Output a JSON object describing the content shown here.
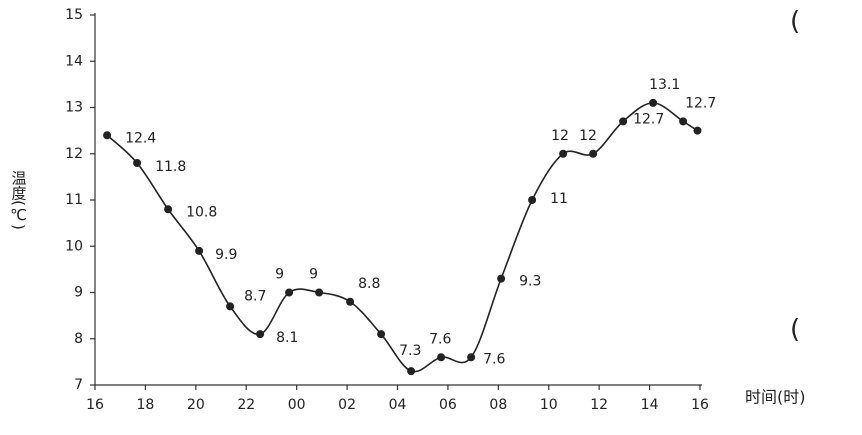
{
  "chart_data": {
    "type": "line",
    "y_label": "温度(℃)",
    "x_label": "时间(时)",
    "annotations": [
      "(",
      "("
    ],
    "x": [
      16.48,
      17.67,
      18.9,
      20.13,
      21.36,
      22.55,
      23.7,
      24.89,
      26.12,
      27.35,
      28.54,
      29.73,
      30.92,
      32.11,
      33.34,
      34.57,
      35.76,
      36.95,
      38.14,
      39.33,
      39.9
    ],
    "values": [
      12.4,
      11.8,
      10.8,
      9.9,
      8.7,
      8.1,
      9,
      9,
      8.8,
      8.1,
      7.3,
      7.6,
      7.6,
      9.3,
      11,
      12,
      12,
      12.7,
      13.1,
      12.7,
      12.5
    ],
    "value_labels": [
      "12.4",
      "11.8",
      "10.8",
      "9.9",
      "8.7",
      "8.1",
      "9",
      "9",
      "8.8",
      null,
      "7.3",
      "7.6",
      "7.6",
      "9.3",
      "11",
      "12",
      "12",
      "12.7",
      "13.1",
      "12.7",
      null
    ],
    "color": "#222222",
    "xlim": [
      16,
      40
    ],
    "xticks": [
      16,
      18,
      20,
      22,
      {
        "value": 24,
        "label": "00"
      },
      {
        "value": 26,
        "label": "02"
      },
      {
        "value": 28,
        "label": "04"
      },
      {
        "value": 30,
        "label": "06"
      },
      {
        "value": 32,
        "label": "08"
      },
      {
        "value": 34,
        "label": "10"
      },
      {
        "value": 36,
        "label": "12"
      },
      {
        "value": 38,
        "label": "14"
      },
      {
        "value": 40,
        "label": "16"
      }
    ],
    "ylim": [
      7,
      15
    ],
    "yticks": [
      7,
      8,
      9,
      10,
      11,
      12,
      13,
      14,
      15
    ]
  }
}
